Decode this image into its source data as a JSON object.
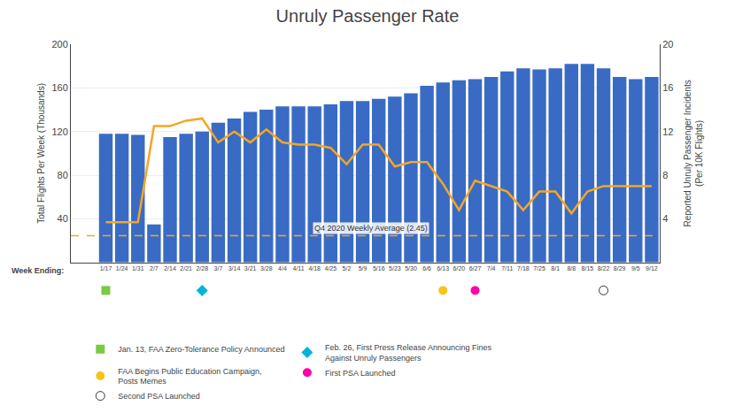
{
  "chart_data": {
    "type": "bar",
    "title": "Unruly Passenger Rate",
    "xlabel": "Week Ending:",
    "ylabel": "Total Flights Per Week (Thousands)",
    "y2label": "Reported Unruly Passenger Incidents\n(Per 10K Flights)",
    "categories": [
      "1/17",
      "1/24",
      "1/31",
      "2/7",
      "2/14",
      "2/21",
      "2/28",
      "3/7",
      "3/14",
      "3/21",
      "3/28",
      "4/4",
      "4/11",
      "4/18",
      "4/25",
      "5/2",
      "5/9",
      "5/16",
      "5/23",
      "5/30",
      "6/6",
      "6/13",
      "6/20",
      "6/27",
      "7/4",
      "7/11",
      "7/18",
      "7/25",
      "8/1",
      "8/8",
      "8/15",
      "8/22",
      "8/29",
      "9/5",
      "9/12"
    ],
    "series": [
      {
        "type": "bar",
        "color": "#3a6bc4",
        "values": [
          118,
          118,
          117,
          35,
          115,
          118,
          120,
          128,
          132,
          138,
          140,
          143,
          143,
          143,
          145,
          148,
          148,
          150,
          152,
          155,
          162,
          165,
          167,
          168,
          170,
          175,
          178,
          177,
          178,
          182,
          182,
          178,
          170,
          168,
          170
        ]
      },
      {
        "type": "line",
        "color": "#f5a623",
        "axis": "y2",
        "values": [
          3.7,
          3.7,
          3.7,
          12.5,
          12.5,
          13.0,
          13.2,
          11.0,
          12.0,
          11.0,
          12.2,
          11.0,
          10.8,
          10.8,
          10.5,
          9.0,
          10.8,
          10.8,
          8.8,
          9.2,
          9.2,
          7.2,
          4.8,
          7.5,
          7.0,
          6.5,
          4.8,
          6.5,
          6.5,
          4.5,
          6.5,
          7.0,
          7.0,
          7.0,
          7.0
        ]
      }
    ],
    "ylim": [
      0,
      200
    ],
    "yticks": [
      40,
      80,
      120,
      160,
      200
    ],
    "y2lim": [
      0,
      20
    ],
    "y2ticks": [
      4,
      8,
      12,
      16,
      20
    ],
    "grid": true,
    "reference_line": {
      "value": 2.45,
      "label": "Q4 2020 Weekly Average (2.45)",
      "axis": "y2",
      "color": "#f5a623",
      "line_style": "dashed"
    },
    "annotations": [
      {
        "category": "1/17",
        "color": "#7ac943",
        "marker": "square",
        "text": "Jan. 13, FAA Zero-Tolerance Policy Announced"
      },
      {
        "category": "2/28",
        "color": "#00b4d8",
        "marker": "diamond",
        "text": "Feb. 26, First Press Release Announcing Fines\nAgainst Unruly Passengers"
      },
      {
        "category": "6/13",
        "color": "#f5c518",
        "marker": "circle",
        "text": "FAA Begins Public Education Campaign,\nPosts Memes"
      },
      {
        "category": "6/27",
        "color": "#ff00aa",
        "marker": "circle",
        "text": "First PSA Launched"
      },
      {
        "category": "8/22",
        "color": "#ffffff",
        "marker": "circle",
        "text": "Second PSA Launched"
      }
    ],
    "legend": "lower left"
  }
}
